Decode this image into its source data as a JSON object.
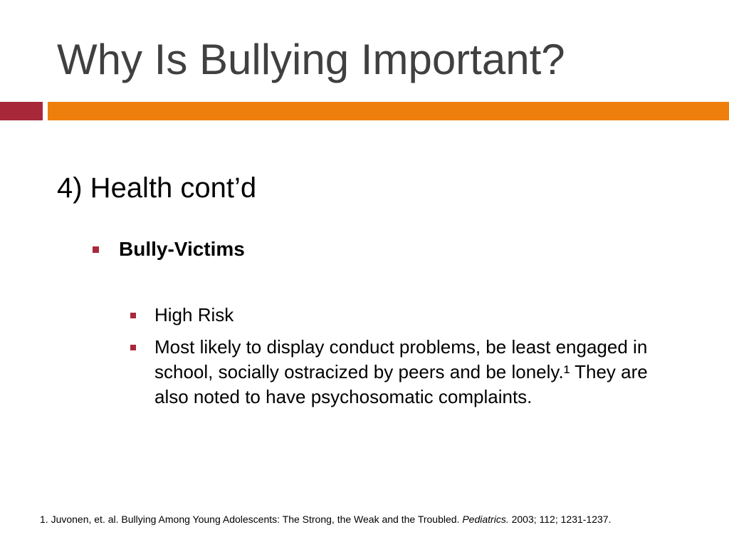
{
  "slide": {
    "title": "Why Is Bullying Important?",
    "heading": "4) Health cont’d",
    "bullet_l1": "Bully-Victims",
    "bullets_l2": [
      "High Risk",
      "Most likely to display conduct problems, be least engaged in school, socially ostracized by peers and be lonely.¹ They are also noted to have psychosomatic complaints."
    ]
  },
  "footnote": {
    "pre": "1. Juvonen, et. al. Bullying  Among Young Adolescents: The Strong, the Weak and the Troubled. ",
    "journal": "Pediatrics.",
    "post": " 2003; 112; 1231-1237."
  },
  "colors": {
    "title_text": "#404040",
    "accent_red": "#a8283a",
    "accent_orange": "#ee7f0d"
  }
}
